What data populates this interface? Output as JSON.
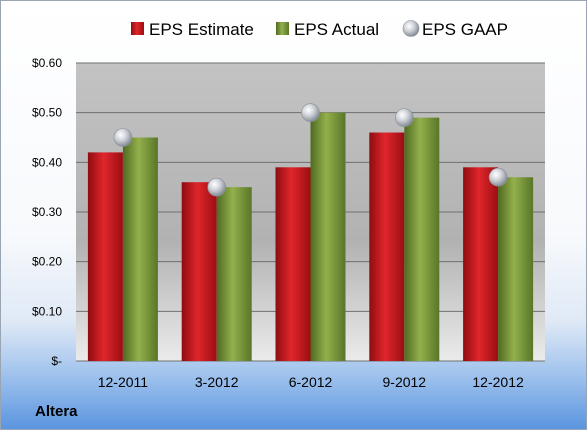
{
  "company": "Altera",
  "chart_data": {
    "type": "bar",
    "categories": [
      "12-2011",
      "3-2012",
      "6-2012",
      "9-2012",
      "12-2012"
    ],
    "series": [
      {
        "name": "EPS Estimate",
        "values": [
          0.42,
          0.36,
          0.39,
          0.46,
          0.39
        ],
        "color": "#c8141c"
      },
      {
        "name": "EPS Actual",
        "values": [
          0.45,
          0.35,
          0.5,
          0.49,
          0.37
        ],
        "color": "#7a9a3a"
      }
    ],
    "markers": {
      "name": "EPS GAAP",
      "values": [
        0.45,
        0.35,
        0.5,
        0.49,
        0.37
      ],
      "color": "#b9bec6"
    },
    "yticks": [
      {
        "value": 0.6,
        "label": "$0.60"
      },
      {
        "value": 0.5,
        "label": "$0.50"
      },
      {
        "value": 0.4,
        "label": "$0.40"
      },
      {
        "value": 0.3,
        "label": "$0.30"
      },
      {
        "value": 0.2,
        "label": "$0.20"
      },
      {
        "value": 0.1,
        "label": "$0.10"
      },
      {
        "value": 0,
        "label": "$-"
      }
    ],
    "ylim": [
      0,
      0.6
    ],
    "grid": true,
    "legend_position": "top"
  }
}
